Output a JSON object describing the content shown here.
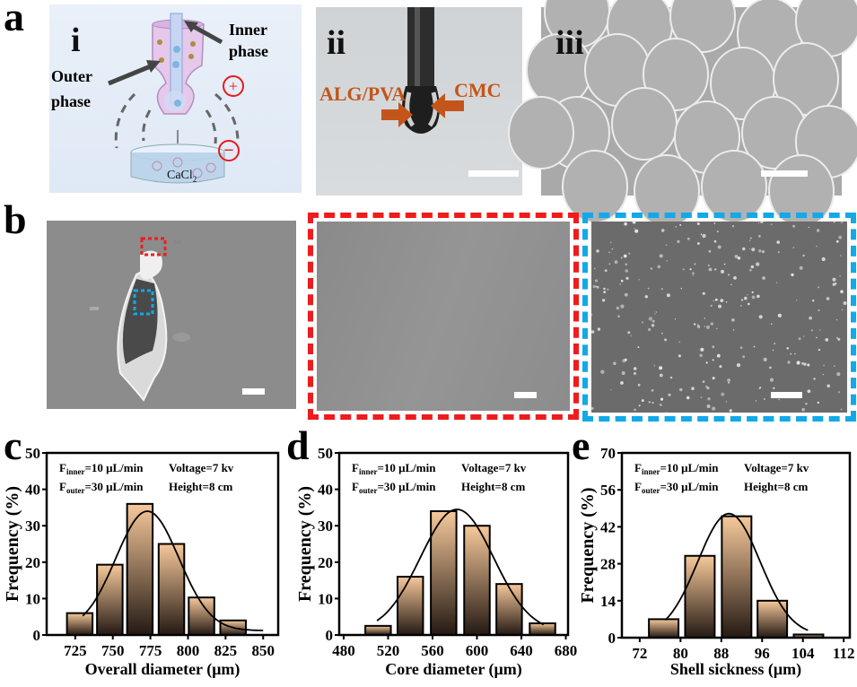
{
  "panels": {
    "a": {
      "label": "a",
      "i": {
        "label": "i",
        "inner_phase": "Inner phase",
        "outer_phase": "Outer phase",
        "bath": "CaCl",
        "bath_sub": "2",
        "plus": "+",
        "minus": "−"
      },
      "ii": {
        "label": "ii",
        "left_arrow": "ALG/PVA",
        "right_arrow": "CMC"
      },
      "iii": {
        "label": "iii"
      }
    },
    "b": {
      "label": "b"
    },
    "c": {
      "label": "c"
    },
    "d": {
      "label": "d"
    },
    "e": {
      "label": "e"
    }
  },
  "colors": {
    "arrow_orange": "#c4551a",
    "red_box": "#ee1c1c",
    "blue_box": "#12a9e8",
    "bar_top": "#f6c99b",
    "bar_bottom": "#241913"
  },
  "annotation": {
    "f_inner": "F",
    "inner_sub": "inner",
    "f_inner_val": "=10 μL/min",
    "f_outer": "F",
    "outer_sub": "outer",
    "f_outer_val": "=30 μL/min",
    "voltage": "Voltage=7 kv",
    "height": "Height=8 cm"
  },
  "chart_data": [
    {
      "id": "c",
      "type": "bar",
      "title": "",
      "xlabel": "Overall diameter (μm)",
      "ylabel": "Frequency (%)",
      "xlim": [
        706,
        860
      ],
      "ylim": [
        0,
        50
      ],
      "xticks": [
        725,
        750,
        775,
        800,
        825,
        850
      ],
      "yticks": [
        0,
        10,
        20,
        30,
        40,
        50
      ],
      "bin_width": 17,
      "x": [
        728,
        748,
        768,
        789,
        809,
        830
      ],
      "values": [
        6,
        19.3,
        36,
        25,
        10.3,
        4
      ],
      "fit": {
        "type": "gaussian",
        "mean": 773,
        "peak": 34,
        "sigma": 21,
        "offset": 1.2,
        "range": [
          730,
          850
        ]
      }
    },
    {
      "id": "d",
      "type": "bar",
      "title": "",
      "xlabel": "Core diameter (μm)",
      "ylabel": "Frequency (%)",
      "xlim": [
        476,
        682
      ],
      "ylim": [
        0,
        50
      ],
      "xticks": [
        480,
        520,
        560,
        600,
        640,
        680
      ],
      "yticks": [
        0,
        10,
        20,
        30,
        40,
        50
      ],
      "bin_width": 23,
      "x": [
        511,
        540,
        570,
        600,
        629,
        659
      ],
      "values": [
        2.5,
        16,
        34,
        30,
        14,
        3.2
      ],
      "fit": {
        "type": "gaussian",
        "mean": 582,
        "peak": 34.5,
        "sigma": 33,
        "offset": 0.8,
        "range": [
          510,
          660
        ]
      }
    },
    {
      "id": "e",
      "type": "bar",
      "title": "",
      "xlabel": "Shell sickness (μm)",
      "ylabel": "Frequency (%)",
      "xlim": [
        68.5,
        113.2
      ],
      "ylim": [
        0,
        70
      ],
      "xticks": [
        72,
        80,
        88,
        96,
        104,
        112
      ],
      "yticks": [
        0,
        14,
        28,
        42,
        56,
        70
      ],
      "bin_width": 5.8,
      "x": [
        76.7,
        83.8,
        91,
        98,
        105.1
      ],
      "values": [
        7,
        31,
        46,
        14,
        1.2
      ],
      "fit": {
        "type": "gaussian",
        "mean": 89.5,
        "peak": 47,
        "sigma": 6.1,
        "offset": 1,
        "range": [
          77,
          105
        ]
      }
    }
  ]
}
